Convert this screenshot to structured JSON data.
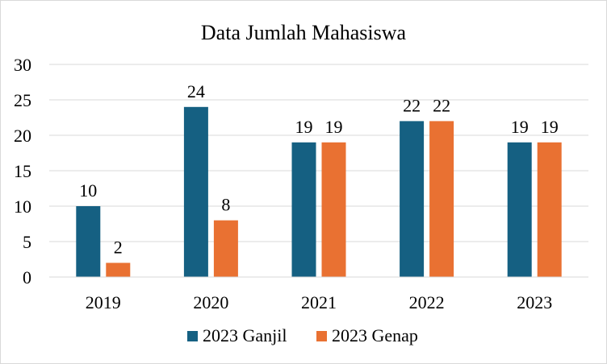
{
  "chart_data": {
    "type": "bar",
    "title": "Data Jumlah Mahasiswa",
    "xlabel": "",
    "ylabel": "",
    "categories": [
      "2019",
      "2020",
      "2021",
      "2022",
      "2023"
    ],
    "series": [
      {
        "name": "2023 Ganjil",
        "color": "#156082",
        "values": [
          10,
          24,
          19,
          22,
          19
        ]
      },
      {
        "name": "2023 Genap",
        "color": "#E97132",
        "values": [
          2,
          8,
          19,
          22,
          19
        ]
      }
    ],
    "ylim": [
      0,
      30
    ],
    "yticks": [
      0,
      5,
      10,
      15,
      20,
      25,
      30
    ],
    "grid": true,
    "legend": "bottom",
    "data_labels": true
  }
}
